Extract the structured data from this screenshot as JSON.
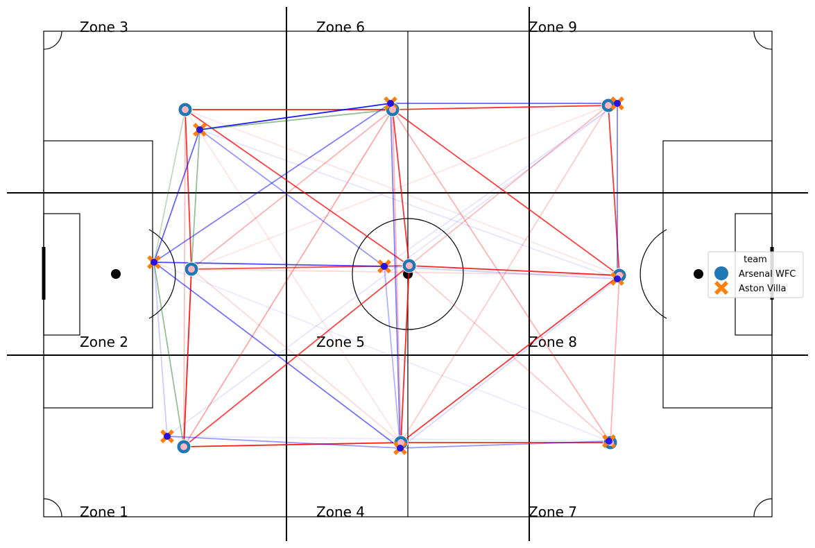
{
  "zones": [
    {
      "id": 1,
      "label": "Zone 1"
    },
    {
      "id": 2,
      "label": "Zone 2"
    },
    {
      "id": 3,
      "label": "Zone 3"
    },
    {
      "id": 4,
      "label": "Zone 4"
    },
    {
      "id": 5,
      "label": "Zone 5"
    },
    {
      "id": 6,
      "label": "Zone 6"
    },
    {
      "id": 7,
      "label": "Zone 7"
    },
    {
      "id": 8,
      "label": "Zone 8"
    },
    {
      "id": 9,
      "label": "Zone 9"
    }
  ],
  "legend": {
    "title": "team",
    "entries": [
      {
        "label": "Arsenal WFC",
        "marker": "circle",
        "color": "#1f77b4"
      },
      {
        "label": "Aston Villa",
        "marker": "x",
        "color": "#ff7f0e"
      }
    ]
  },
  "colors": {
    "arsenal_marker": "#1f77b4",
    "villa_marker": "#ff7f0e",
    "arsenal_pass": "#ff0000",
    "villa_pass": "#0000ff",
    "shared_pass": "#2e7d32",
    "arsenal_node": "#ffb6c1",
    "villa_node": "#0000ff"
  },
  "chart_data": {
    "type": "pass-network",
    "teams": [
      "Arsenal WFC",
      "Aston Villa"
    ],
    "zone_grid": {
      "columns": 3,
      "rows": 3,
      "numbering": "column-major from bottom-left"
    },
    "arsenal_nodes": [
      {
        "id": "a3",
        "zone": 3
      },
      {
        "id": "a2",
        "zone": 2
      },
      {
        "id": "a1",
        "zone": 1
      },
      {
        "id": "a6",
        "zone": 6
      },
      {
        "id": "a5",
        "zone": 5
      },
      {
        "id": "a4",
        "zone": 4
      },
      {
        "id": "a9",
        "zone": 9
      },
      {
        "id": "a8",
        "zone": 8
      },
      {
        "id": "a7",
        "zone": 7
      }
    ],
    "villa_nodes": [
      {
        "id": "v3",
        "zone": 3
      },
      {
        "id": "v2",
        "zone": 2
      },
      {
        "id": "v1",
        "zone": 1
      },
      {
        "id": "v6",
        "zone": 6
      },
      {
        "id": "v5",
        "zone": 5
      },
      {
        "id": "v4",
        "zone": 4
      },
      {
        "id": "v9",
        "zone": 9
      },
      {
        "id": "v8",
        "zone": 8
      },
      {
        "id": "v7",
        "zone": 7
      }
    ],
    "arsenal_links": [
      {
        "from": "a3",
        "to": "a6",
        "weight": 0.9
      },
      {
        "from": "a3",
        "to": "a2",
        "weight": 0.8
      },
      {
        "from": "a2",
        "to": "a1",
        "weight": 0.9
      },
      {
        "from": "a2",
        "to": "a5",
        "weight": 0.7
      },
      {
        "from": "a1",
        "to": "a4",
        "weight": 0.9
      },
      {
        "from": "a6",
        "to": "a9",
        "weight": 0.8
      },
      {
        "from": "a6",
        "to": "a5",
        "weight": 0.8
      },
      {
        "from": "a6",
        "to": "a8",
        "weight": 0.75
      },
      {
        "from": "a5",
        "to": "a8",
        "weight": 0.85
      },
      {
        "from": "a5",
        "to": "a4",
        "weight": 0.85
      },
      {
        "from": "a4",
        "to": "a7",
        "weight": 0.85
      },
      {
        "from": "a4",
        "to": "a8",
        "weight": 0.8
      },
      {
        "from": "a9",
        "to": "a8",
        "weight": 0.8
      },
      {
        "from": "a8",
        "to": "a7",
        "weight": 0.3
      },
      {
        "from": "a3",
        "to": "a5",
        "weight": 0.75
      },
      {
        "from": "a1",
        "to": "a5",
        "weight": 0.7
      },
      {
        "from": "a2",
        "to": "a6",
        "weight": 0.3
      },
      {
        "from": "a1",
        "to": "a6",
        "weight": 0.35
      },
      {
        "from": "a6",
        "to": "a7",
        "weight": 0.3
      },
      {
        "from": "a5",
        "to": "a7",
        "weight": 0.2
      },
      {
        "from": "a3",
        "to": "a8",
        "weight": 0.1
      },
      {
        "from": "a2",
        "to": "a9",
        "weight": 0.1
      },
      {
        "from": "a1",
        "to": "a9",
        "weight": 0.08
      },
      {
        "from": "a3",
        "to": "a4",
        "weight": 0.1
      },
      {
        "from": "a3",
        "to": "a1",
        "weight": 0.25
      },
      {
        "from": "a5",
        "to": "a9",
        "weight": 0.2
      },
      {
        "from": "a4",
        "to": "a9",
        "weight": 0.2
      },
      {
        "from": "a2",
        "to": "a8",
        "weight": 0.15
      },
      {
        "from": "a2",
        "to": "a4",
        "weight": 0.15
      },
      {
        "from": "a6",
        "to": "a4",
        "weight": 0.3
      }
    ],
    "villa_links": [
      {
        "from": "v3",
        "to": "v6",
        "weight": 0.9
      },
      {
        "from": "v2",
        "to": "v3",
        "weight": 0.6
      },
      {
        "from": "v2",
        "to": "v5",
        "weight": 0.7
      },
      {
        "from": "v2",
        "to": "v6",
        "weight": 0.5
      },
      {
        "from": "v2",
        "to": "v4",
        "weight": 0.55
      },
      {
        "from": "v6",
        "to": "v9",
        "weight": 0.6
      },
      {
        "from": "v6",
        "to": "v4",
        "weight": 0.5
      },
      {
        "from": "v5",
        "to": "v4",
        "weight": 0.3
      },
      {
        "from": "v4",
        "to": "v7",
        "weight": 0.4
      },
      {
        "from": "v9",
        "to": "v8",
        "weight": 0.5
      },
      {
        "from": "v3",
        "to": "v5",
        "weight": 0.4
      },
      {
        "from": "v1",
        "to": "v4",
        "weight": 0.4
      },
      {
        "from": "v1",
        "to": "v2",
        "weight": 0.2
      },
      {
        "from": "v5",
        "to": "v8",
        "weight": 0.2
      },
      {
        "from": "v3",
        "to": "v8",
        "weight": 0.1
      },
      {
        "from": "v1",
        "to": "v9",
        "weight": 0.1
      },
      {
        "from": "v2",
        "to": "v7",
        "weight": 0.08
      },
      {
        "from": "v1",
        "to": "v7",
        "weight": 0.08
      },
      {
        "from": "v5",
        "to": "v9",
        "weight": 0.1
      },
      {
        "from": "v4",
        "to": "v8",
        "weight": 0.15
      }
    ],
    "shared_links": [
      {
        "from": "v3",
        "to": "a6",
        "weight": 0.5
      },
      {
        "from": "v3",
        "to": "a2",
        "weight": 0.5
      },
      {
        "from": "v2",
        "to": "a1",
        "weight": 0.5
      },
      {
        "from": "a3",
        "to": "v2",
        "weight": 0.3
      }
    ]
  }
}
